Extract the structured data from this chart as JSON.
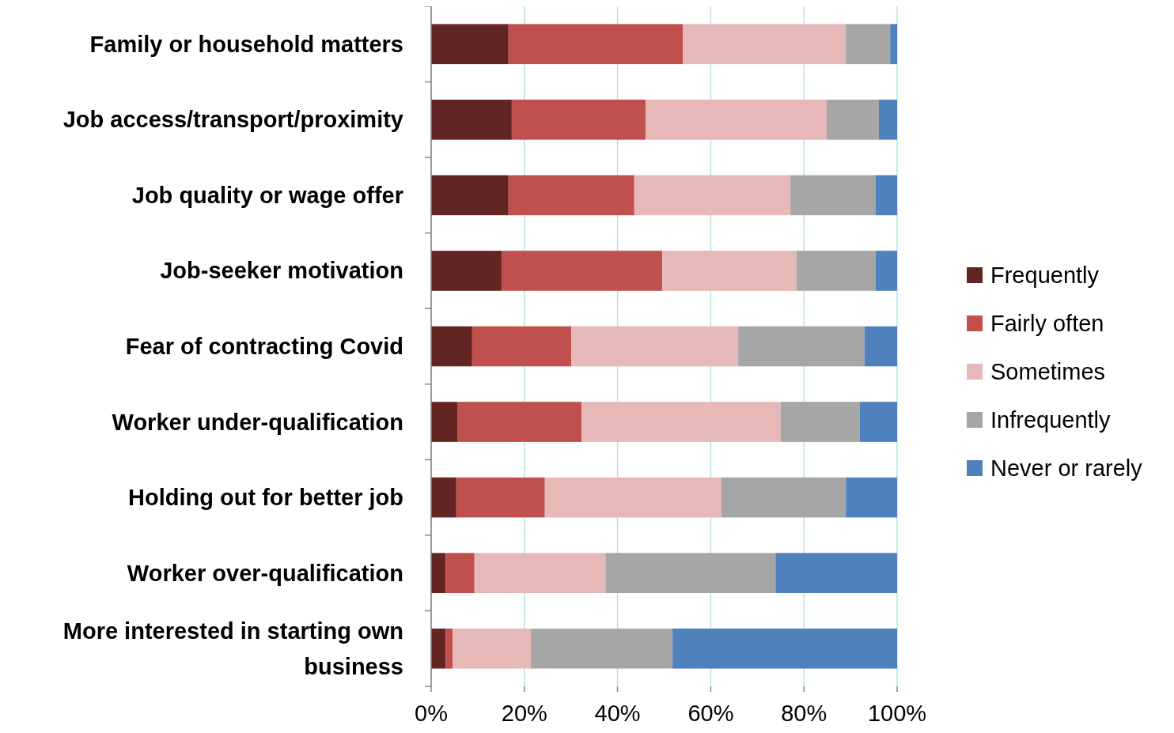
{
  "chart_data": {
    "type": "bar",
    "orientation": "horizontal",
    "stacked": true,
    "categories": [
      "Family or household matters",
      "Job access/transport/proximity",
      "Job quality or wage offer",
      "Job-seeker motivation",
      "Fear of contracting Covid",
      "Worker under-qualification",
      "Holding out for better job",
      "Worker over-qualification",
      "More interested in starting own business"
    ],
    "series": [
      {
        "name": "Frequently",
        "color": "#632523",
        "values": [
          16.6,
          17.3,
          16.6,
          15.1,
          8.8,
          5.6,
          5.4,
          3.1,
          3.1
        ]
      },
      {
        "name": "Fairly often",
        "color": "#c0504d",
        "values": [
          37.4,
          28.7,
          27,
          34.5,
          21.3,
          26.7,
          19,
          6.2,
          1.5
        ]
      },
      {
        "name": "Sometimes",
        "color": "#e6b8b7",
        "values": [
          35,
          38.9,
          33.5,
          28.8,
          35.8,
          42.7,
          37.9,
          28.1,
          16.8
        ]
      },
      {
        "name": "Infrequently",
        "color": "#a6a6a6",
        "values": [
          9.5,
          11.2,
          18.3,
          17,
          27.1,
          17,
          26.7,
          36.5,
          30.4
        ]
      },
      {
        "name": "Never or rarely",
        "color": "#4f81bd",
        "values": [
          1.5,
          3.9,
          4.6,
          4.6,
          7,
          8,
          11,
          26.1,
          48.2
        ]
      }
    ],
    "xlim": [
      0,
      100
    ],
    "xticks": [
      {
        "value": 0,
        "label": "0%"
      },
      {
        "value": 20,
        "label": "20%"
      },
      {
        "value": 40,
        "label": "40%"
      },
      {
        "value": 60,
        "label": "60%"
      },
      {
        "value": 80,
        "label": "80%"
      },
      {
        "value": 100,
        "label": "100%"
      }
    ],
    "grid": "x",
    "legend": "right"
  }
}
